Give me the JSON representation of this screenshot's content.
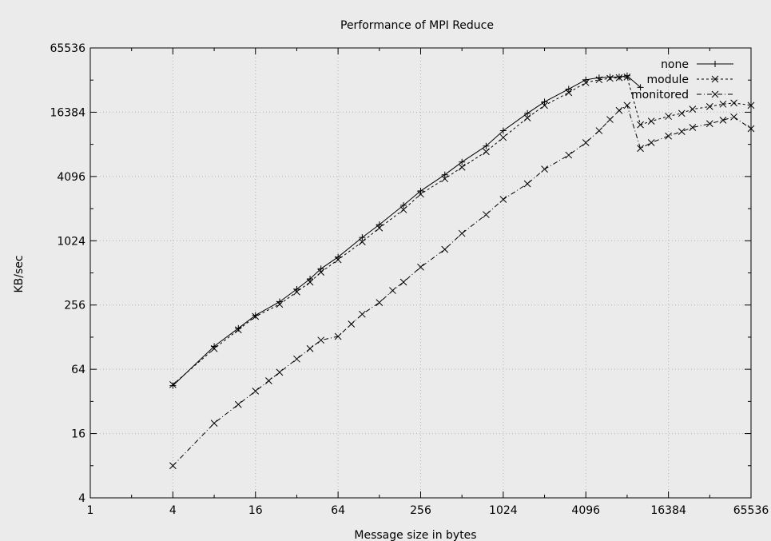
{
  "chart_data": {
    "type": "line",
    "title": "Performance of MPI Reduce",
    "xlabel": "Message size in bytes",
    "ylabel": "KB/sec",
    "xscale": "log2",
    "yscale": "log2",
    "xlim": [
      1,
      65536
    ],
    "ylim": [
      4,
      65536
    ],
    "xticks": [
      "1",
      "4",
      "16",
      "64",
      "256",
      "1024",
      "4096",
      "16384",
      "65536"
    ],
    "yticks": [
      "4",
      "16",
      "64",
      "256",
      "1024",
      "4096",
      "16384",
      "65536"
    ],
    "grid": true,
    "legend_position": "top-right",
    "series": [
      {
        "name": "none",
        "marker": "+",
        "dash": "",
        "color": "#000000",
        "x": [
          4,
          8,
          12,
          16,
          24,
          32,
          40,
          48,
          64,
          96,
          128,
          192,
          256,
          384,
          512,
          768,
          1024,
          1536,
          2048,
          3072,
          4096,
          5120,
          6144,
          7168,
          8192,
          10240
        ],
        "y": [
          45,
          105,
          155,
          205,
          275,
          360,
          450,
          560,
          720,
          1100,
          1450,
          2200,
          3000,
          4250,
          5600,
          7900,
          11000,
          16000,
          20500,
          27000,
          33000,
          34500,
          35000,
          35000,
          36000,
          28000
        ]
      },
      {
        "name": "module",
        "marker": "x",
        "dash": "3,3",
        "color": "#000000",
        "x": [
          4,
          8,
          12,
          16,
          24,
          32,
          40,
          48,
          64,
          96,
          128,
          192,
          256,
          384,
          512,
          768,
          1024,
          1536,
          2048,
          3072,
          4096,
          5120,
          6144,
          7168,
          8192,
          10240,
          12288,
          16384,
          20480,
          24576,
          32768,
          40960,
          49152,
          65536
        ],
        "y": [
          46,
          100,
          150,
          200,
          260,
          340,
          420,
          520,
          680,
          1000,
          1350,
          2000,
          2800,
          3900,
          5000,
          7000,
          9500,
          14500,
          19000,
          25000,
          31000,
          33000,
          34000,
          34500,
          35000,
          12500,
          13500,
          15000,
          16000,
          17500,
          18500,
          19500,
          20000,
          19000
        ]
      },
      {
        "name": "monitored",
        "marker": "x",
        "dash": "6,3,1,3",
        "color": "#000000",
        "x": [
          4,
          8,
          12,
          16,
          20,
          24,
          32,
          40,
          48,
          64,
          80,
          96,
          128,
          160,
          192,
          256,
          384,
          512,
          768,
          1024,
          1536,
          2048,
          3072,
          4096,
          5120,
          6144,
          7168,
          8192,
          10240,
          12288,
          16384,
          20480,
          24576,
          32768,
          40960,
          49152,
          65536
        ],
        "y": [
          8,
          20,
          30,
          40,
          50,
          60,
          80,
          100,
          120,
          130,
          170,
          210,
          270,
          350,
          420,
          580,
          850,
          1200,
          1800,
          2500,
          3500,
          4800,
          6500,
          8500,
          11000,
          14000,
          17000,
          19000,
          7500,
          8500,
          9800,
          10800,
          11800,
          12800,
          13800,
          14800,
          11500
        ]
      }
    ]
  }
}
